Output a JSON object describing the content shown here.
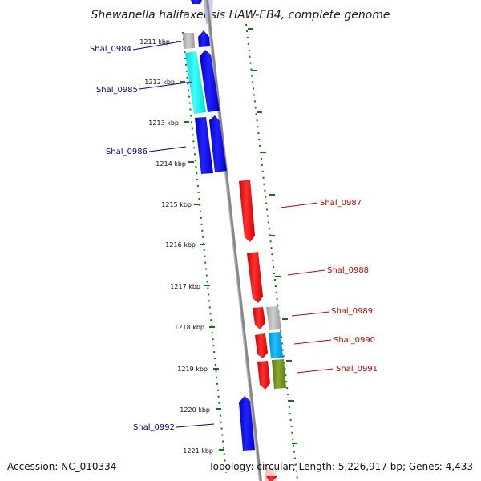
{
  "title": "Shewanella halifaxensis HAW-EB4, complete genome",
  "footer": {
    "accession": "Accession: NC_010334",
    "summary": "Topology: circular; Length: 5,226,917 bp; Genes: 4,433"
  },
  "colors": {
    "forward_strand": "#0000ee",
    "reverse_strand": "#ee0000",
    "forward_label": "#0000aa",
    "reverse_label": "#cc0000",
    "tick": "#117711",
    "backbone": "#888888"
  },
  "ticks": [
    {
      "label": "1211 kbp"
    },
    {
      "label": "1212 kbp"
    },
    {
      "label": "1213 kbp"
    },
    {
      "label": "1214 kbp"
    },
    {
      "label": "1215 kbp"
    },
    {
      "label": "1216 kbp"
    },
    {
      "label": "1217 kbp"
    },
    {
      "label": "1218 kbp"
    },
    {
      "label": "1219 kbp"
    },
    {
      "label": "1220 kbp"
    },
    {
      "label": "1221 kbp"
    }
  ],
  "gene_labels": [
    {
      "name": "Shal_0984",
      "strand": "forward"
    },
    {
      "name": "Shal_0985",
      "strand": "forward"
    },
    {
      "name": "Shal_0986",
      "strand": "forward"
    },
    {
      "name": "Shal_0987",
      "strand": "reverse"
    },
    {
      "name": "Shal_0988",
      "strand": "reverse"
    },
    {
      "name": "Shal_0989",
      "strand": "reverse"
    },
    {
      "name": "Shal_0990",
      "strand": "reverse"
    },
    {
      "name": "Shal_0991",
      "strand": "reverse"
    },
    {
      "name": "Shal_0992",
      "strand": "forward"
    }
  ]
}
